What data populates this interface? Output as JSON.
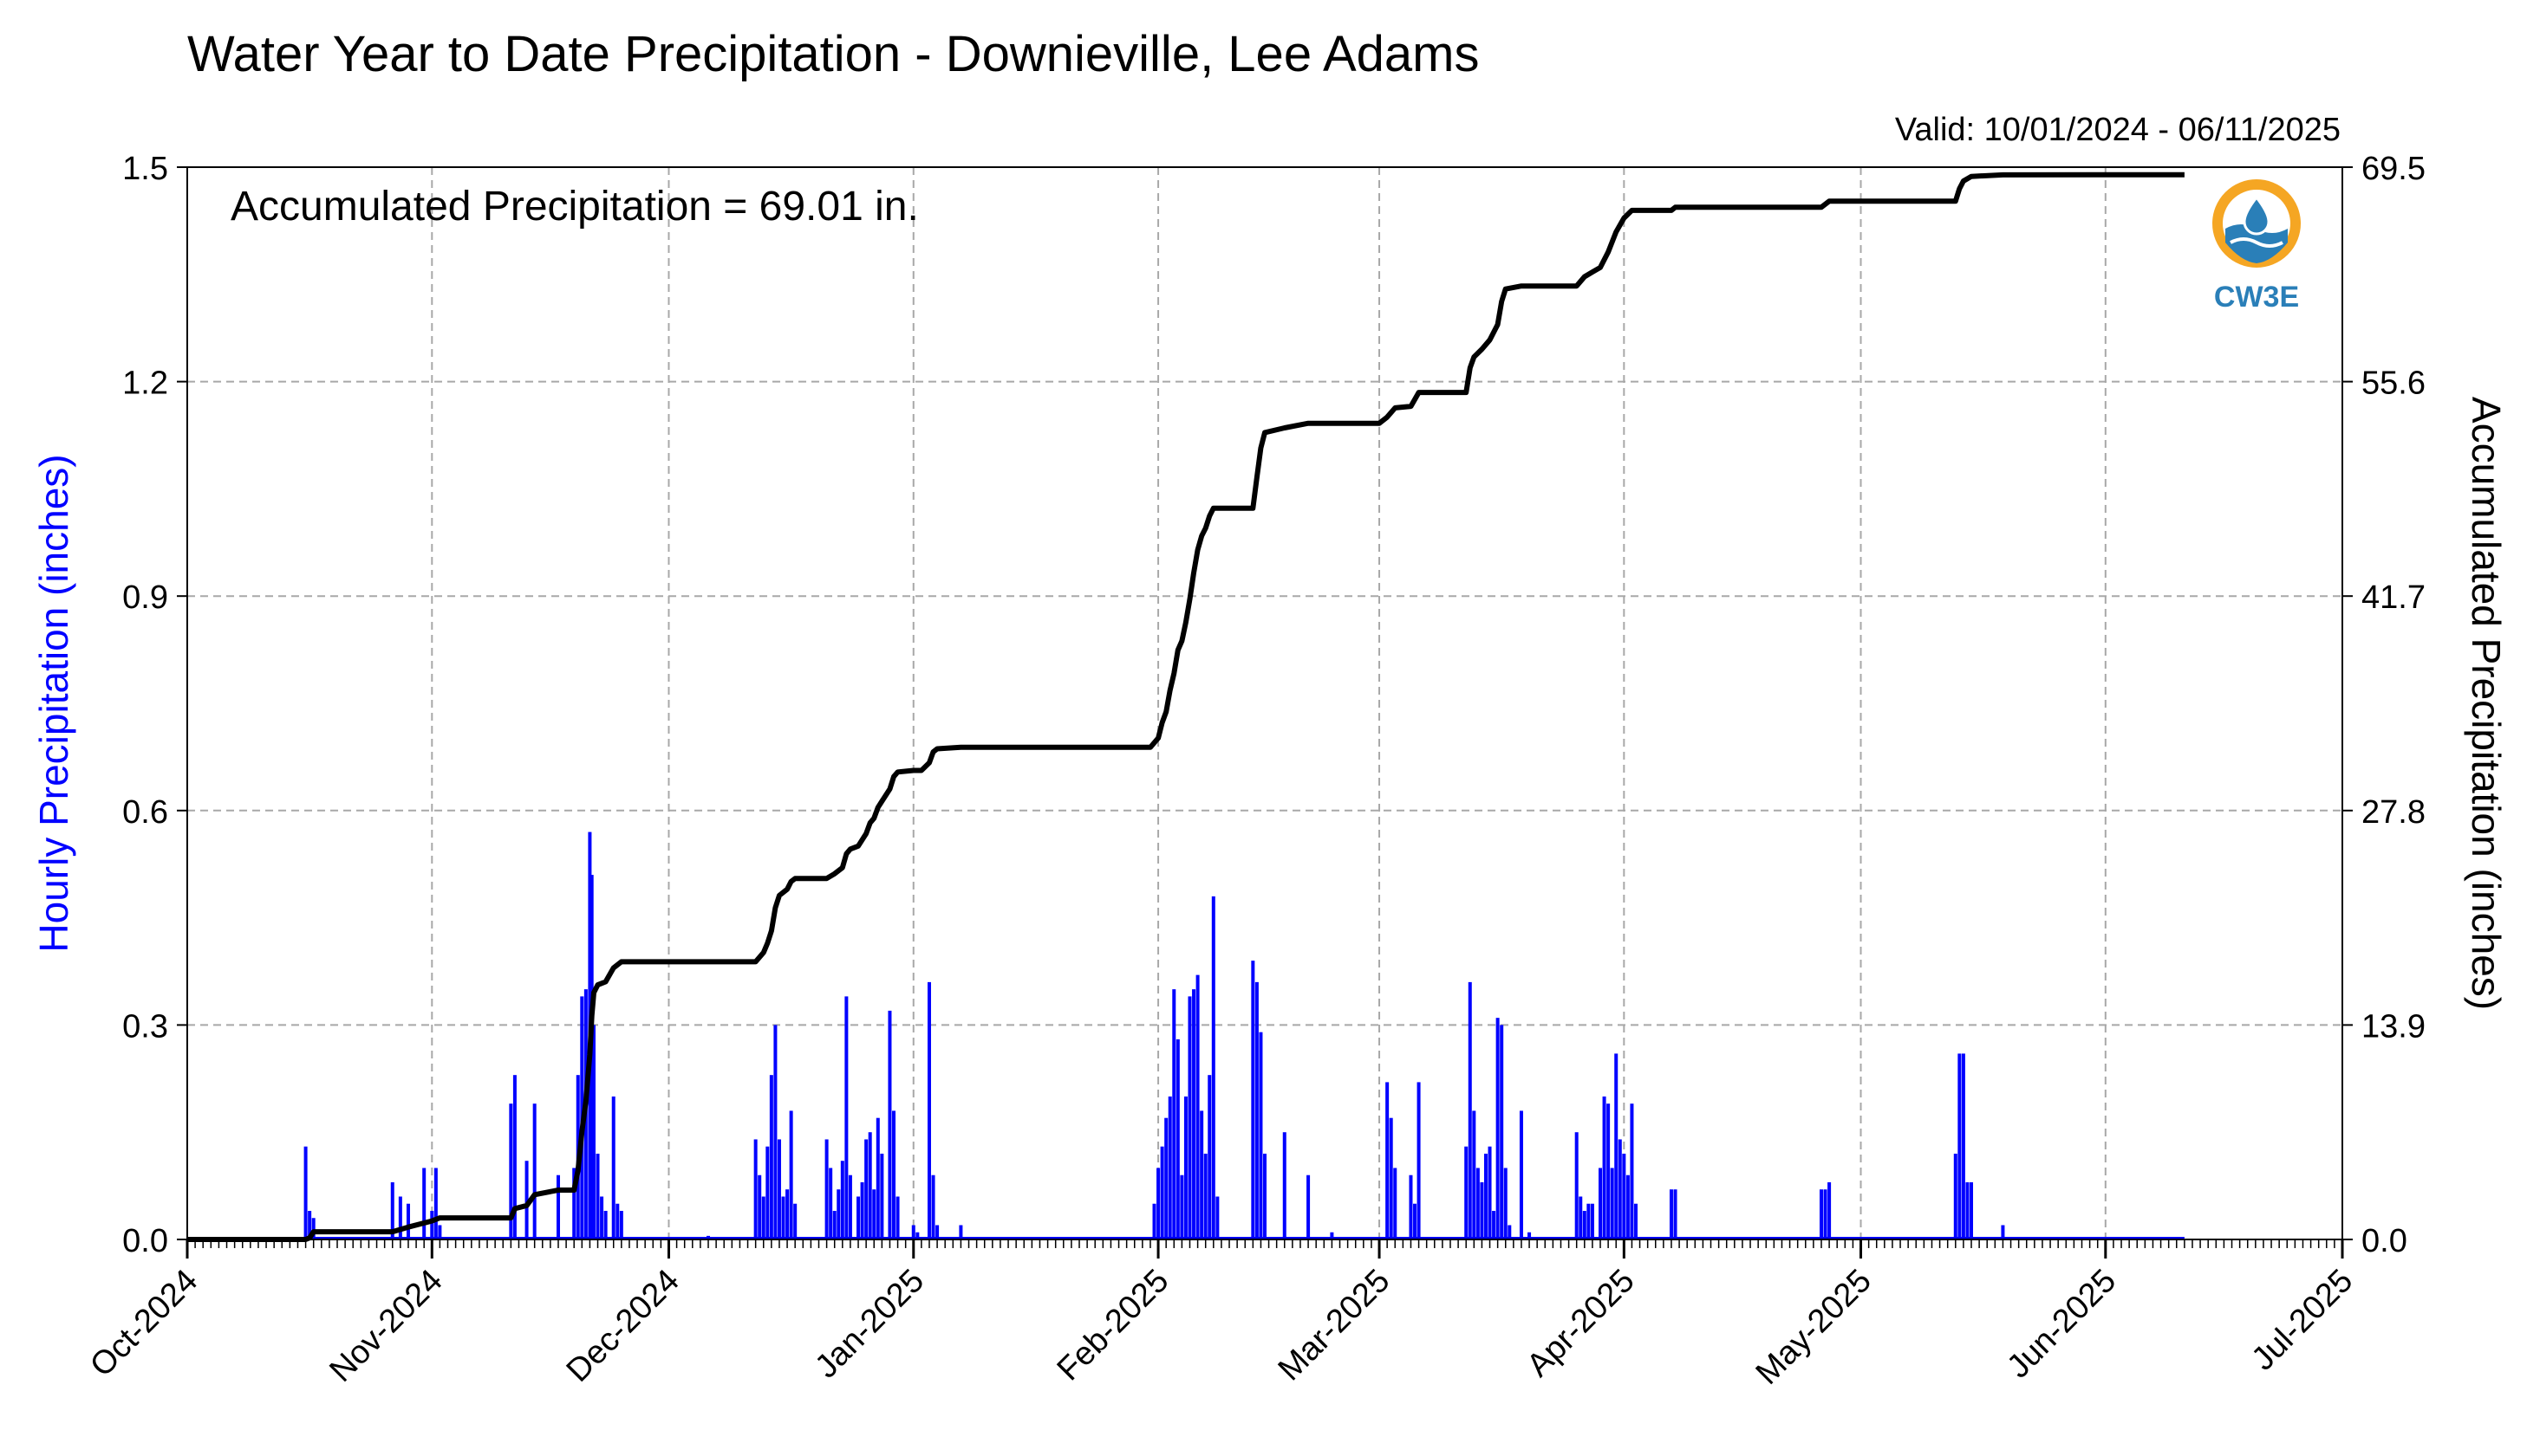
{
  "chart_data": {
    "type": "bar+line",
    "title": "Water Year to Date Precipitation - Downieville, Lee Adams",
    "subtitle": "Valid: 10/01/2024 - 06/11/2025",
    "annotation": "Accumulated Precipitation = 69.01 in.",
    "ylabel_left": "Hourly Precipitation (inches)",
    "ylabel_right": "Accumulated Precipitation (inches)",
    "ylim_left": [
      0,
      1.5
    ],
    "ylim_right": [
      0,
      69.5
    ],
    "yticks_left": [
      "0.0",
      "0.3",
      "0.6",
      "0.9",
      "1.2",
      "1.5"
    ],
    "yticks_right": [
      "0.0",
      "13.9",
      "27.8",
      "41.7",
      "55.6",
      "69.5"
    ],
    "xrange": [
      "2024-10-01",
      "2025-07-01"
    ],
    "xticks": [
      {
        "date": "2024-10-01",
        "label": "Oct-2024"
      },
      {
        "date": "2024-11-01",
        "label": "Nov-2024"
      },
      {
        "date": "2024-12-01",
        "label": "Dec-2024"
      },
      {
        "date": "2025-01-01",
        "label": "Jan-2025"
      },
      {
        "date": "2025-02-01",
        "label": "Feb-2025"
      },
      {
        "date": "2025-03-01",
        "label": "Mar-2025"
      },
      {
        "date": "2025-04-01",
        "label": "Apr-2025"
      },
      {
        "date": "2025-05-01",
        "label": "May-2025"
      },
      {
        "date": "2025-06-01",
        "label": "Jun-2025"
      },
      {
        "date": "2025-07-01",
        "label": "Jul-2025"
      }
    ],
    "grid": true,
    "colors": {
      "hourly": "#0000ff",
      "accumulated": "#000000",
      "grid": "#a8a8a8",
      "left_label": "#0000ff"
    },
    "hourly_series": {
      "name": "Hourly Precipitation",
      "points": [
        [
          "2024-10-16",
          0.13
        ],
        [
          "2024-10-16T12",
          0.04
        ],
        [
          "2024-10-17",
          0.03
        ],
        [
          "2024-10-27",
          0.08
        ],
        [
          "2024-10-28",
          0.06
        ],
        [
          "2024-10-29",
          0.05
        ],
        [
          "2024-10-31",
          0.1
        ],
        [
          "2024-11-01",
          0.04
        ],
        [
          "2024-11-01T12",
          0.1
        ],
        [
          "2024-11-02",
          0.02
        ],
        [
          "2024-11-11",
          0.19
        ],
        [
          "2024-11-11T12",
          0.23
        ],
        [
          "2024-11-13",
          0.11
        ],
        [
          "2024-11-14",
          0.19
        ],
        [
          "2024-11-17",
          0.09
        ],
        [
          "2024-11-19",
          0.1
        ],
        [
          "2024-11-19T12",
          0.23
        ],
        [
          "2024-11-20",
          0.34
        ],
        [
          "2024-11-20T12",
          0.35
        ],
        [
          "2024-11-21",
          0.57
        ],
        [
          "2024-11-21T06",
          0.51
        ],
        [
          "2024-11-21T12",
          0.3
        ],
        [
          "2024-11-22",
          0.12
        ],
        [
          "2024-11-22T12",
          0.06
        ],
        [
          "2024-11-23",
          0.04
        ],
        [
          "2024-11-24",
          0.2
        ],
        [
          "2024-11-24T12",
          0.05
        ],
        [
          "2024-11-25",
          0.04
        ],
        [
          "2024-12-06",
          0.005
        ],
        [
          "2024-12-12",
          0.14
        ],
        [
          "2024-12-12T12",
          0.09
        ],
        [
          "2024-12-13",
          0.06
        ],
        [
          "2024-12-13T12",
          0.13
        ],
        [
          "2024-12-14",
          0.23
        ],
        [
          "2024-12-14T12",
          0.3
        ],
        [
          "2024-12-15",
          0.14
        ],
        [
          "2024-12-15T12",
          0.06
        ],
        [
          "2024-12-16",
          0.07
        ],
        [
          "2024-12-16T12",
          0.18
        ],
        [
          "2024-12-17",
          0.05
        ],
        [
          "2024-12-21",
          0.14
        ],
        [
          "2024-12-21T12",
          0.1
        ],
        [
          "2024-12-22",
          0.04
        ],
        [
          "2024-12-22T12",
          0.07
        ],
        [
          "2024-12-23",
          0.11
        ],
        [
          "2024-12-23T12",
          0.34
        ],
        [
          "2024-12-24",
          0.09
        ],
        [
          "2024-12-25",
          0.06
        ],
        [
          "2024-12-25T12",
          0.08
        ],
        [
          "2024-12-26",
          0.14
        ],
        [
          "2024-12-26T12",
          0.15
        ],
        [
          "2024-12-27",
          0.07
        ],
        [
          "2024-12-27T12",
          0.17
        ],
        [
          "2024-12-28",
          0.12
        ],
        [
          "2024-12-29",
          0.32
        ],
        [
          "2024-12-29T12",
          0.18
        ],
        [
          "2024-12-30",
          0.06
        ],
        [
          "2025-01-01",
          0.02
        ],
        [
          "2025-01-01T12",
          0.01
        ],
        [
          "2025-01-03",
          0.36
        ],
        [
          "2025-01-03T12",
          0.09
        ],
        [
          "2025-01-04",
          0.02
        ],
        [
          "2025-01-07",
          0.02
        ],
        [
          "2025-01-31T12",
          0.05
        ],
        [
          "2025-02-01",
          0.1
        ],
        [
          "2025-02-01T12",
          0.13
        ],
        [
          "2025-02-02",
          0.17
        ],
        [
          "2025-02-02T12",
          0.2
        ],
        [
          "2025-02-03",
          0.35
        ],
        [
          "2025-02-03T12",
          0.28
        ],
        [
          "2025-02-04",
          0.09
        ],
        [
          "2025-02-04T12",
          0.2
        ],
        [
          "2025-02-05",
          0.34
        ],
        [
          "2025-02-05T12",
          0.35
        ],
        [
          "2025-02-06",
          0.37
        ],
        [
          "2025-02-06T12",
          0.18
        ],
        [
          "2025-02-07",
          0.12
        ],
        [
          "2025-02-07T12",
          0.23
        ],
        [
          "2025-02-08",
          0.48
        ],
        [
          "2025-02-08T12",
          0.06
        ],
        [
          "2025-02-13",
          0.39
        ],
        [
          "2025-02-13T12",
          0.36
        ],
        [
          "2025-02-14",
          0.29
        ],
        [
          "2025-02-14T12",
          0.12
        ],
        [
          "2025-02-17",
          0.15
        ],
        [
          "2025-02-20",
          0.09
        ],
        [
          "2025-02-23",
          0.01
        ],
        [
          "2025-03-02",
          0.22
        ],
        [
          "2025-03-02T12",
          0.17
        ],
        [
          "2025-03-03",
          0.1
        ],
        [
          "2025-03-05",
          0.09
        ],
        [
          "2025-03-05T12",
          0.05
        ],
        [
          "2025-03-06",
          0.22
        ],
        [
          "2025-03-12",
          0.13
        ],
        [
          "2025-03-12T12",
          0.36
        ],
        [
          "2025-03-13",
          0.18
        ],
        [
          "2025-03-13T12",
          0.1
        ],
        [
          "2025-03-14",
          0.08
        ],
        [
          "2025-03-14T12",
          0.12
        ],
        [
          "2025-03-15",
          0.13
        ],
        [
          "2025-03-15T12",
          0.04
        ],
        [
          "2025-03-16",
          0.31
        ],
        [
          "2025-03-16T12",
          0.3
        ],
        [
          "2025-03-17",
          0.1
        ],
        [
          "2025-03-17T12",
          0.02
        ],
        [
          "2025-03-19",
          0.18
        ],
        [
          "2025-03-20",
          0.01
        ],
        [
          "2025-03-26",
          0.15
        ],
        [
          "2025-03-26T12",
          0.06
        ],
        [
          "2025-03-27",
          0.04
        ],
        [
          "2025-03-27T12",
          0.05
        ],
        [
          "2025-03-28",
          0.05
        ],
        [
          "2025-03-29",
          0.1
        ],
        [
          "2025-03-29T12",
          0.2
        ],
        [
          "2025-03-30",
          0.19
        ],
        [
          "2025-03-30T12",
          0.1
        ],
        [
          "2025-03-31",
          0.26
        ],
        [
          "2025-03-31T12",
          0.14
        ],
        [
          "2025-04-01",
          0.12
        ],
        [
          "2025-04-01T12",
          0.09
        ],
        [
          "2025-04-02",
          0.19
        ],
        [
          "2025-04-02T12",
          0.05
        ],
        [
          "2025-04-07",
          0.07
        ],
        [
          "2025-04-07T12",
          0.07
        ],
        [
          "2025-04-26",
          0.07
        ],
        [
          "2025-04-26T12",
          0.07
        ],
        [
          "2025-04-27",
          0.08
        ],
        [
          "2025-05-13",
          0.12
        ],
        [
          "2025-05-13T12",
          0.26
        ],
        [
          "2025-05-14",
          0.26
        ],
        [
          "2025-05-14T12",
          0.08
        ],
        [
          "2025-05-15",
          0.08
        ],
        [
          "2025-05-19",
          0.02
        ]
      ]
    },
    "accumulated_series": {
      "name": "Accumulated Precipitation",
      "points": [
        [
          "2024-10-01",
          0.0
        ],
        [
          "2024-10-16",
          0.0
        ],
        [
          "2024-10-16T12",
          0.1
        ],
        [
          "2024-10-17",
          0.5
        ],
        [
          "2024-10-27",
          0.5
        ],
        [
          "2024-10-29",
          0.8
        ],
        [
          "2024-11-01",
          1.2
        ],
        [
          "2024-11-02",
          1.4
        ],
        [
          "2024-11-11",
          1.4
        ],
        [
          "2024-11-11T12",
          2.0
        ],
        [
          "2024-11-13",
          2.2
        ],
        [
          "2024-11-14",
          2.9
        ],
        [
          "2024-11-17",
          3.2
        ],
        [
          "2024-11-19",
          3.2
        ],
        [
          "2024-11-19T12",
          4.5
        ],
        [
          "2024-11-20",
          7.0
        ],
        [
          "2024-11-20T12",
          9.0
        ],
        [
          "2024-11-21",
          12.0
        ],
        [
          "2024-11-21T06",
          14.5
        ],
        [
          "2024-11-21T12",
          16.0
        ],
        [
          "2024-11-22",
          16.5
        ],
        [
          "2024-11-23",
          16.7
        ],
        [
          "2024-11-24",
          17.6
        ],
        [
          "2024-11-25",
          18.0
        ],
        [
          "2024-12-12",
          18.0
        ],
        [
          "2024-12-13",
          18.6
        ],
        [
          "2024-12-13T12",
          19.2
        ],
        [
          "2024-12-14",
          20.0
        ],
        [
          "2024-12-14T12",
          21.5
        ],
        [
          "2024-12-15",
          22.3
        ],
        [
          "2024-12-16",
          22.7
        ],
        [
          "2024-12-16T12",
          23.2
        ],
        [
          "2024-12-17",
          23.4
        ],
        [
          "2024-12-21",
          23.4
        ],
        [
          "2024-12-22",
          23.7
        ],
        [
          "2024-12-23",
          24.1
        ],
        [
          "2024-12-23T12",
          25.0
        ],
        [
          "2024-12-24",
          25.3
        ],
        [
          "2024-12-25",
          25.5
        ],
        [
          "2024-12-26",
          26.3
        ],
        [
          "2024-12-26T12",
          27.0
        ],
        [
          "2024-12-27",
          27.3
        ],
        [
          "2024-12-27T12",
          28.0
        ],
        [
          "2024-12-28",
          28.4
        ],
        [
          "2024-12-29",
          29.2
        ],
        [
          "2024-12-29T12",
          30.0
        ],
        [
          "2024-12-30",
          30.3
        ],
        [
          "2025-01-01",
          30.4
        ],
        [
          "2025-01-02",
          30.4
        ],
        [
          "2025-01-03",
          30.9
        ],
        [
          "2025-01-03T12",
          31.6
        ],
        [
          "2025-01-04",
          31.8
        ],
        [
          "2025-01-07",
          31.9
        ],
        [
          "2025-01-31",
          31.9
        ],
        [
          "2025-02-01",
          32.5
        ],
        [
          "2025-02-01T12",
          33.5
        ],
        [
          "2025-02-02",
          34.2
        ],
        [
          "2025-02-02T12",
          35.6
        ],
        [
          "2025-02-03",
          36.7
        ],
        [
          "2025-02-03T12",
          38.2
        ],
        [
          "2025-02-04",
          38.8
        ],
        [
          "2025-02-04T12",
          40.0
        ],
        [
          "2025-02-05",
          41.5
        ],
        [
          "2025-02-05T12",
          43.2
        ],
        [
          "2025-02-06",
          44.7
        ],
        [
          "2025-02-06T12",
          45.6
        ],
        [
          "2025-02-07",
          46.1
        ],
        [
          "2025-02-07T12",
          46.9
        ],
        [
          "2025-02-08",
          47.4
        ],
        [
          "2025-02-13",
          47.4
        ],
        [
          "2025-02-13T12",
          49.4
        ],
        [
          "2025-02-14",
          51.3
        ],
        [
          "2025-02-14T12",
          52.3
        ],
        [
          "2025-02-17",
          52.6
        ],
        [
          "2025-02-20",
          52.9
        ],
        [
          "2025-03-01",
          52.9
        ],
        [
          "2025-03-02",
          53.3
        ],
        [
          "2025-03-03",
          53.9
        ],
        [
          "2025-03-05",
          54.0
        ],
        [
          "2025-03-06",
          54.9
        ],
        [
          "2025-03-12",
          54.9
        ],
        [
          "2025-03-12T12",
          56.5
        ],
        [
          "2025-03-13",
          57.2
        ],
        [
          "2025-03-14",
          57.7
        ],
        [
          "2025-03-15",
          58.3
        ],
        [
          "2025-03-16",
          59.3
        ],
        [
          "2025-03-16T12",
          60.8
        ],
        [
          "2025-03-17",
          61.6
        ],
        [
          "2025-03-19",
          61.8
        ],
        [
          "2025-03-26",
          61.8
        ],
        [
          "2025-03-27",
          62.4
        ],
        [
          "2025-03-28",
          62.7
        ],
        [
          "2025-03-29",
          63.0
        ],
        [
          "2025-03-30",
          64.0
        ],
        [
          "2025-03-31",
          65.3
        ],
        [
          "2025-04-01",
          66.2
        ],
        [
          "2025-04-02",
          66.7
        ],
        [
          "2025-04-07",
          66.7
        ],
        [
          "2025-04-07T12",
          66.9
        ],
        [
          "2025-04-26",
          66.9
        ],
        [
          "2025-04-27",
          67.3
        ],
        [
          "2025-05-13",
          67.3
        ],
        [
          "2025-05-13T12",
          68.1
        ],
        [
          "2025-05-14",
          68.6
        ],
        [
          "2025-05-15",
          68.9
        ],
        [
          "2025-05-19",
          69.0
        ],
        [
          "2025-06-11",
          69.01
        ]
      ]
    }
  },
  "logo": {
    "text": "CW3E",
    "icon": "cw3e-logo-icon",
    "ring_color": "#f5a623",
    "wave_color": "#2a7fb8"
  }
}
